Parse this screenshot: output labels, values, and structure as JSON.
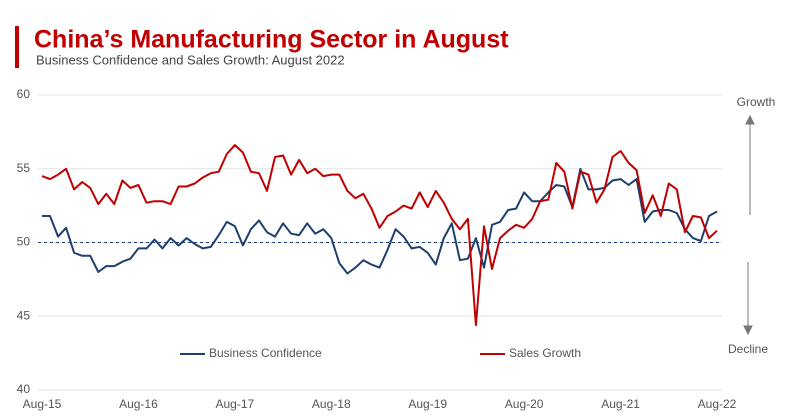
{
  "chart_data": {
    "type": "line",
    "title": "China’s Manufacturing Sector in August",
    "subtitle": "Business Confidence and Sales Growth: August 2022",
    "categories": [
      "Aug-15",
      null,
      null,
      null,
      null,
      null,
      null,
      null,
      null,
      null,
      null,
      null,
      "Aug-16",
      null,
      null,
      null,
      null,
      null,
      null,
      null,
      null,
      null,
      null,
      null,
      "Aug-17",
      null,
      null,
      null,
      null,
      null,
      null,
      null,
      null,
      null,
      null,
      null,
      "Aug-18",
      null,
      null,
      null,
      null,
      null,
      null,
      null,
      null,
      null,
      null,
      null,
      "Aug-19",
      null,
      null,
      null,
      null,
      null,
      null,
      null,
      null,
      null,
      null,
      null,
      "Aug-20",
      null,
      null,
      null,
      null,
      null,
      null,
      null,
      null,
      null,
      null,
      null,
      "Aug-21",
      null,
      null,
      null,
      null,
      null,
      null,
      null,
      null,
      null,
      null,
      null,
      "Aug-22"
    ],
    "series": [
      {
        "name": "Business Confidence",
        "color": "#1f3f6e",
        "values": [
          51.8,
          51.8,
          50.4,
          51.0,
          49.3,
          49.1,
          49.1,
          48.0,
          48.4,
          48.4,
          48.7,
          48.9,
          49.6,
          49.6,
          50.2,
          49.6,
          50.3,
          49.8,
          50.3,
          49.9,
          49.6,
          49.7,
          50.5,
          51.4,
          51.1,
          49.8,
          50.9,
          51.5,
          50.7,
          50.4,
          51.3,
          50.6,
          50.5,
          51.3,
          50.6,
          50.9,
          50.3,
          48.6,
          47.9,
          48.3,
          48.8,
          48.5,
          48.3,
          49.5,
          50.9,
          50.4,
          49.6,
          49.7,
          49.3,
          48.5,
          50.3,
          51.3,
          48.8,
          48.9,
          50.3,
          48.3,
          51.2,
          51.4,
          52.2,
          52.3,
          53.4,
          52.8,
          52.8,
          53.4,
          53.9,
          53.8,
          52.4,
          55.0,
          53.6,
          53.6,
          53.7,
          54.2,
          54.3,
          53.9,
          54.3,
          51.4,
          52.1,
          52.2,
          52.2,
          52.0,
          50.9,
          50.3,
          50.1,
          51.8,
          52.1
        ]
      },
      {
        "name": "Sales Growth",
        "color": "#c00000",
        "values": [
          54.5,
          54.3,
          54.6,
          55.0,
          53.6,
          54.1,
          53.7,
          52.6,
          53.3,
          52.6,
          54.2,
          53.7,
          53.9,
          52.7,
          52.8,
          52.8,
          52.6,
          53.8,
          53.8,
          54.0,
          54.4,
          54.7,
          54.8,
          56.0,
          56.6,
          56.1,
          54.8,
          54.7,
          53.5,
          55.8,
          55.9,
          54.6,
          55.6,
          54.7,
          55.0,
          54.5,
          54.6,
          54.6,
          53.5,
          53.0,
          53.3,
          52.3,
          51.0,
          51.8,
          52.1,
          52.5,
          52.3,
          53.4,
          52.4,
          53.5,
          52.7,
          51.6,
          50.9,
          51.6,
          44.4,
          51.1,
          48.2,
          50.3,
          50.8,
          51.2,
          51.0,
          51.6,
          52.8,
          52.9,
          55.4,
          54.8,
          52.3,
          54.8,
          54.6,
          52.7,
          53.6,
          55.8,
          56.2,
          55.4,
          54.9,
          52.0,
          53.2,
          51.8,
          54.0,
          53.6,
          50.7,
          51.8,
          51.7,
          50.3,
          50.8
        ]
      }
    ],
    "ylim": [
      40,
      60
    ],
    "yticks": [
      40,
      45,
      50,
      55,
      60
    ],
    "grid": true,
    "reference_line": 50,
    "annotations": [
      "Growth",
      "Decline"
    ],
    "legend": "bottom"
  }
}
